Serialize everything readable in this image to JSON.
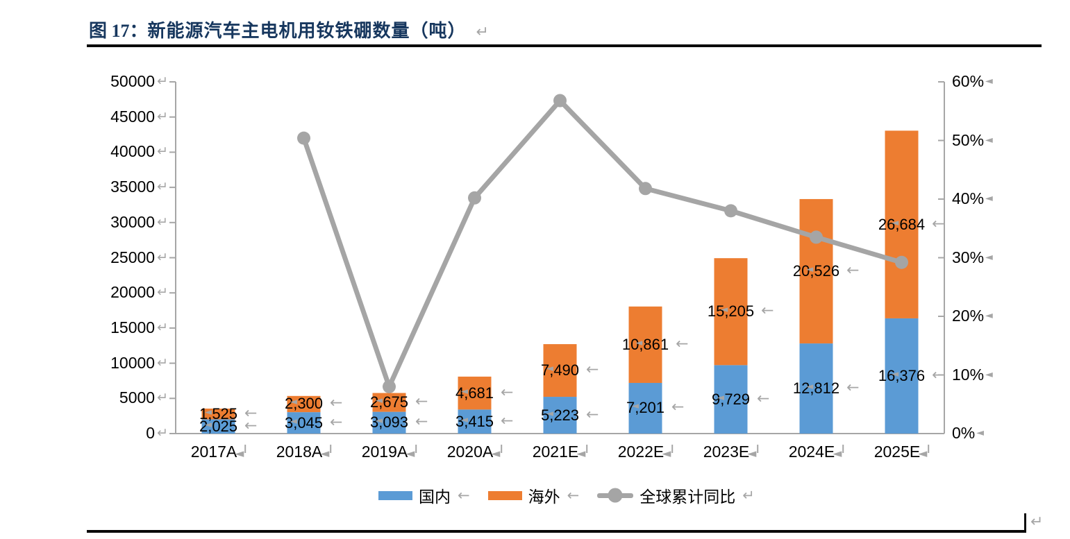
{
  "figure": {
    "caption": {
      "prefix": "图 17：",
      "title": "新能源汽车主电机用钕铁硼数量（吨）"
    }
  },
  "marks": {
    "return_mark": "↵",
    "left_arrow": "←",
    "cell_mark": "◄"
  },
  "colors": {
    "domestic": "#5b9bd5",
    "overseas": "#ed7d31",
    "line": "#a5a5a5",
    "axis": "#a6a6a6",
    "format_mark": "#a6a6a6",
    "caption": "#17375e",
    "rule": "#0a0a0a",
    "label_text": "#000000"
  },
  "chart_data": {
    "type": "bar",
    "subtype": "stacked-bar-with-line",
    "title": "新能源汽车主电机用钕铁硼数量（吨）",
    "categories": [
      "2017A",
      "2018A",
      "2019A",
      "2020A",
      "2021E",
      "2022E",
      "2023E",
      "2024E",
      "2025E"
    ],
    "series": [
      {
        "name": "国内",
        "type": "bar",
        "stack": "total",
        "axis": "left",
        "color": "#5b9bd5",
        "values": [
          2025,
          3045,
          3093,
          3415,
          5223,
          7201,
          9729,
          12812,
          16376
        ]
      },
      {
        "name": "海外",
        "type": "bar",
        "stack": "total",
        "axis": "left",
        "color": "#ed7d31",
        "values": [
          1525,
          2300,
          2675,
          4681,
          7490,
          10861,
          15205,
          20526,
          26684
        ]
      },
      {
        "name": "全球累计同比",
        "type": "line",
        "axis": "right",
        "color": "#a5a5a5",
        "values_percent": [
          null,
          50.4,
          8,
          40.2,
          56.8,
          41.8,
          38,
          33.5,
          29.2
        ]
      }
    ],
    "left_axis": {
      "min": 0,
      "max": 50000,
      "step": 5000,
      "ticks": [
        "0",
        "5000",
        "10000",
        "15000",
        "20000",
        "25000",
        "30000",
        "35000",
        "40000",
        "45000",
        "50000"
      ]
    },
    "right_axis": {
      "min": 0,
      "max": 60,
      "step": 10,
      "ticks": [
        "0%",
        "10%",
        "20%",
        "30%",
        "40%",
        "50%",
        "60%"
      ]
    },
    "legend": {
      "position": "bottom",
      "items": [
        "国内",
        "海外",
        "全球累计同比"
      ]
    },
    "gridlines": false,
    "data_labels": true
  }
}
